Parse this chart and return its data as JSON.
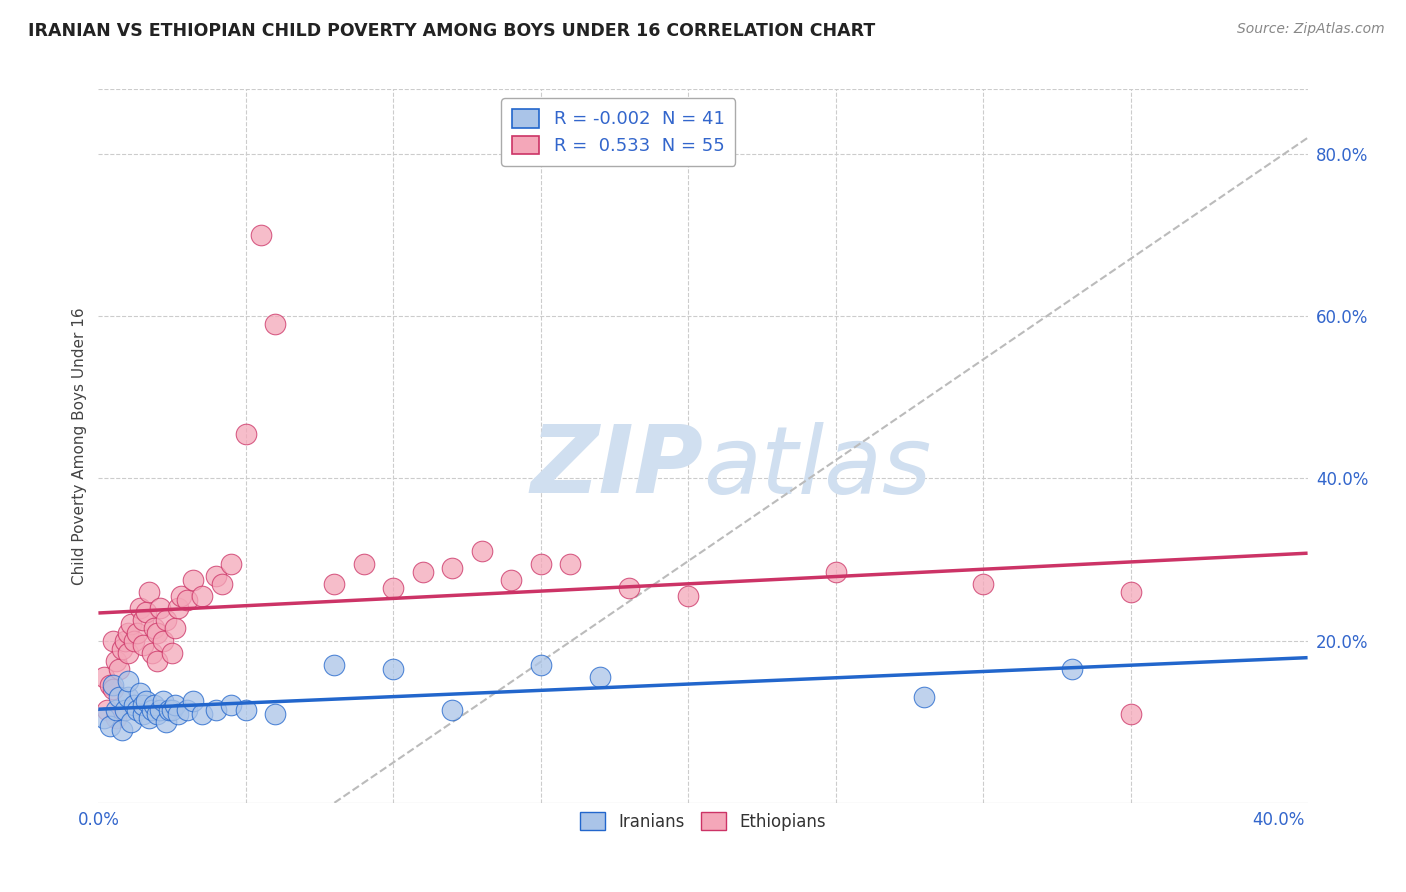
{
  "title": "IRANIAN VS ETHIOPIAN CHILD POVERTY AMONG BOYS UNDER 16 CORRELATION CHART",
  "source": "Source: ZipAtlas.com",
  "ylabel": "Child Poverty Among Boys Under 16",
  "ylim": [
    0.0,
    0.88
  ],
  "xlim": [
    0.0,
    0.41
  ],
  "ytick_vals": [
    0.2,
    0.4,
    0.6,
    0.8
  ],
  "ytick_labels": [
    "20.0%",
    "40.0%",
    "60.0%",
    "80.0%"
  ],
  "xtick_vals": [
    0.0,
    0.4
  ],
  "xtick_labels": [
    "0.0%",
    "40.0%"
  ],
  "legend_iranian_R": "-0.002",
  "legend_iranian_N": "41",
  "legend_ethiopian_R": "0.533",
  "legend_ethiopian_N": "55",
  "iranian_color": "#aac4e8",
  "ethiopian_color": "#f4a7b9",
  "trendline_iranian_color": "#2266cc",
  "trendline_ethiopian_color": "#cc3366",
  "trendline_diagonal_color": "#bbbbbb",
  "background_color": "#ffffff",
  "grid_color": "#cccccc",
  "title_color": "#222222",
  "axis_label_color": "#444444",
  "tick_color": "#3366cc",
  "watermark_color": "#d0dff0",
  "iranians_x": [
    0.002,
    0.004,
    0.005,
    0.006,
    0.007,
    0.008,
    0.009,
    0.01,
    0.01,
    0.011,
    0.012,
    0.013,
    0.014,
    0.015,
    0.015,
    0.016,
    0.017,
    0.018,
    0.019,
    0.02,
    0.021,
    0.022,
    0.023,
    0.024,
    0.025,
    0.026,
    0.027,
    0.03,
    0.032,
    0.035,
    0.04,
    0.045,
    0.05,
    0.06,
    0.08,
    0.1,
    0.12,
    0.15,
    0.17,
    0.28,
    0.33
  ],
  "iranians_y": [
    0.105,
    0.095,
    0.145,
    0.115,
    0.13,
    0.09,
    0.115,
    0.13,
    0.15,
    0.1,
    0.12,
    0.115,
    0.135,
    0.11,
    0.12,
    0.125,
    0.105,
    0.115,
    0.12,
    0.11,
    0.115,
    0.125,
    0.1,
    0.115,
    0.115,
    0.12,
    0.11,
    0.115,
    0.125,
    0.11,
    0.115,
    0.12,
    0.115,
    0.11,
    0.17,
    0.165,
    0.115,
    0.17,
    0.155,
    0.13,
    0.165
  ],
  "ethiopians_x": [
    0.002,
    0.004,
    0.005,
    0.005,
    0.006,
    0.007,
    0.008,
    0.009,
    0.01,
    0.01,
    0.011,
    0.012,
    0.013,
    0.014,
    0.015,
    0.015,
    0.016,
    0.017,
    0.018,
    0.019,
    0.02,
    0.02,
    0.021,
    0.022,
    0.023,
    0.025,
    0.026,
    0.027,
    0.028,
    0.03,
    0.032,
    0.035,
    0.04,
    0.042,
    0.045,
    0.05,
    0.055,
    0.06,
    0.08,
    0.09,
    0.1,
    0.11,
    0.12,
    0.13,
    0.14,
    0.15,
    0.16,
    0.18,
    0.2,
    0.25,
    0.3,
    0.35,
    0.003,
    0.006,
    0.35
  ],
  "ethiopians_y": [
    0.155,
    0.145,
    0.2,
    0.14,
    0.175,
    0.165,
    0.19,
    0.2,
    0.21,
    0.185,
    0.22,
    0.2,
    0.21,
    0.24,
    0.195,
    0.225,
    0.235,
    0.26,
    0.185,
    0.215,
    0.21,
    0.175,
    0.24,
    0.2,
    0.225,
    0.185,
    0.215,
    0.24,
    0.255,
    0.25,
    0.275,
    0.255,
    0.28,
    0.27,
    0.295,
    0.455,
    0.7,
    0.59,
    0.27,
    0.295,
    0.265,
    0.285,
    0.29,
    0.31,
    0.275,
    0.295,
    0.295,
    0.265,
    0.255,
    0.285,
    0.27,
    0.26,
    0.115,
    0.105,
    0.11
  ]
}
